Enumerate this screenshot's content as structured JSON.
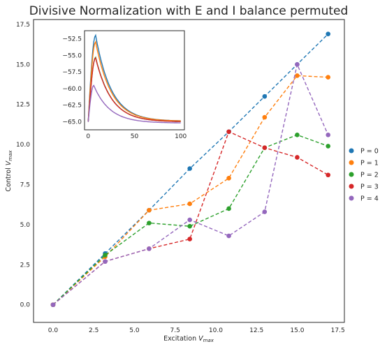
{
  "chart_data": [
    {
      "type": "line",
      "title": "Divisive Normalization with E and I balance permuted",
      "xlabel": "Excitation V_max",
      "ylabel": "Control V_max",
      "xlim": [
        -1.2,
        17.9
      ],
      "ylim": [
        -1.1,
        17.8
      ],
      "xticks": [
        0.0,
        2.5,
        5.0,
        7.5,
        10.0,
        12.5,
        15.0,
        17.5
      ],
      "xtick_labels": [
        "0.0",
        "2.5",
        "5.0",
        "7.5",
        "10.0",
        "12.5",
        "15.0",
        "17.5"
      ],
      "yticks": [
        0.0,
        2.5,
        5.0,
        7.5,
        10.0,
        12.5,
        15.0,
        17.5
      ],
      "ytick_labels": [
        "0.0",
        "2.5",
        "5.0",
        "7.5",
        "10.0",
        "12.5",
        "15.0",
        "17.5"
      ],
      "grid": false,
      "legend_placement": "outside right",
      "line_style": "dashed with circle markers",
      "x": [
        0.0,
        3.2,
        5.9,
        8.4,
        10.8,
        13.0,
        15.0,
        16.9
      ],
      "series": [
        {
          "name": "P = 0",
          "color": "#1f77b4",
          "values": [
            0.0,
            3.2,
            5.9,
            8.5,
            10.8,
            13.0,
            15.0,
            16.9
          ]
        },
        {
          "name": "P = 1",
          "color": "#ff7f0e",
          "values": [
            0.0,
            3.0,
            5.9,
            6.3,
            7.9,
            11.7,
            14.3,
            14.2
          ]
        },
        {
          "name": "P = 2",
          "color": "#2ca02c",
          "values": [
            0.0,
            3.1,
            5.1,
            4.9,
            6.0,
            9.8,
            10.6,
            9.9
          ]
        },
        {
          "name": "P = 3",
          "color": "#d62728",
          "values": [
            0.0,
            2.7,
            3.5,
            4.1,
            10.8,
            9.8,
            9.2,
            8.1
          ]
        },
        {
          "name": "P = 4",
          "color": "#9467bd",
          "values": [
            0.0,
            2.7,
            3.5,
            5.3,
            4.3,
            5.8,
            15.0,
            10.6
          ]
        }
      ]
    },
    {
      "type": "line",
      "title": "",
      "xlabel": "",
      "ylabel": "",
      "xlim": [
        -4,
        104
      ],
      "ylim": [
        -66.2,
        -51.3
      ],
      "xticks": [
        0,
        50,
        100
      ],
      "xtick_labels": [
        "0",
        "50",
        "100"
      ],
      "yticks": [
        -52.5,
        -55.0,
        -57.5,
        -60.0,
        -62.5,
        -65.0
      ],
      "ytick_labels": [
        "−52.5",
        "−55.0",
        "−57.5",
        "−60.0",
        "−62.5",
        "−65.0"
      ],
      "grid": false,
      "placement": "inset upper-left",
      "series": [
        {
          "color": "#1f77b4",
          "t0": 0,
          "peak_time": 8,
          "start": -65.0,
          "peak": -52.0,
          "end": -64.9
        },
        {
          "color": "#ff7f0e",
          "t0": 0,
          "peak_time": 8,
          "start": -65.0,
          "peak": -53.0,
          "end": -64.9
        },
        {
          "color": "#2ca02c",
          "t0": 0,
          "peak_time": 8,
          "start": -65.0,
          "peak": -55.3,
          "end": -65.0
        },
        {
          "color": "#d62728",
          "t0": 0,
          "peak_time": 8,
          "start": -65.0,
          "peak": -55.4,
          "end": -65.0
        },
        {
          "color": "#9467bd",
          "t0": 0,
          "peak_time": 6,
          "start": -65.0,
          "peak": -59.5,
          "end": -65.2
        }
      ]
    }
  ],
  "legend": {
    "entries": [
      {
        "label": "P = 0",
        "color": "#1f77b4"
      },
      {
        "label": "P = 1",
        "color": "#ff7f0e"
      },
      {
        "label": "P = 2",
        "color": "#2ca02c"
      },
      {
        "label": "P = 3",
        "color": "#d62728"
      },
      {
        "label": "P = 4",
        "color": "#9467bd"
      }
    ]
  }
}
